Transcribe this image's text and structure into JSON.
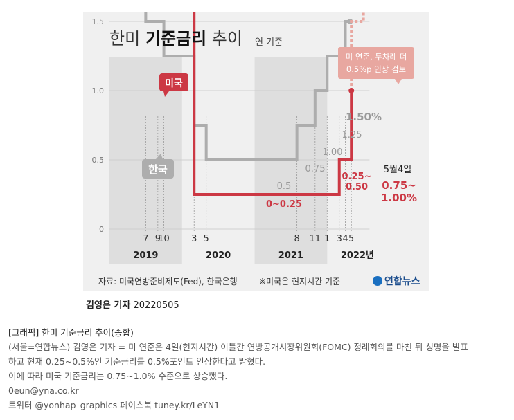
{
  "header": {
    "title_light": "한미",
    "title_bold": "기준금리",
    "title_end": "추이",
    "subtitle": "연 기준"
  },
  "labels": {
    "us": "미국",
    "korea": "한국",
    "us_dec_line1": "미 연준, 두차례 더",
    "us_dec_line2": "0.5%p 인상 검토",
    "date_may4": "5월4일",
    "us_now_1": "0.75~",
    "us_now_2": "1.00%",
    "kr_now": "1.50%",
    "v_0_25": "0~0.25",
    "v_05": "0.5",
    "v_075": "0.75",
    "v_100": "1.00",
    "v_125": "1.25",
    "us_025": "0.25~",
    "us_050": "0.50"
  },
  "footer": {
    "source": "자료: 미국연방준비제도(Fed), 한국은행",
    "note": "※미국은 현지시간 기준",
    "logo": "연합뉴스"
  },
  "credit": {
    "name": "김영은 기자",
    "date": "20220505"
  },
  "caption": {
    "title": "[그래픽] 한미 기준금리 추이(종합)",
    "line1": "(서울=연합뉴스) 김영은 기자 = 미 연준은 4일(현지시간) 이틀간 연방공개시장위원회(FOMC) 정례회의를 마친 뒤 성명을 발표",
    "line2": "하고 현재 0.25~0.5%인 기준금리를 0.5%포인트 인상한다고 밝혔다.",
    "line3": "이에 따라 미국 기준금리는 0.75~1.0% 수준으로 상승했다.",
    "line4": "0eun@yna.co.kr",
    "line5": "트위터 @yonhap_graphics 페이스북 tuney.kr/LeYN1"
  },
  "colors": {
    "us": "#cc3844",
    "korea": "#adadad",
    "us_future": "#e8a7a0"
  },
  "chart_data": {
    "type": "line",
    "step": true,
    "ylim": [
      0,
      2.5
    ],
    "yticks": [
      "0",
      "0.5",
      "1.0",
      "1.5",
      "2.0",
      "2.5"
    ],
    "year_labels": [
      "2019",
      "2020",
      "2021",
      "2022년"
    ],
    "month_labels": [
      {
        "m": "7",
        "year": 2019
      },
      {
        "m": "9",
        "year": 2019
      },
      {
        "m": "10",
        "year": 2019
      },
      {
        "m": "3",
        "year": 2020
      },
      {
        "m": "5",
        "year": 2020
      },
      {
        "m": "8",
        "year": 2021
      },
      {
        "m": "11",
        "year": 2021
      },
      {
        "m": "1",
        "year": 2022
      },
      {
        "m": "3",
        "year": 2022
      },
      {
        "m": "4",
        "year": 2022
      },
      {
        "m": "5",
        "year": 2022
      }
    ],
    "series": [
      {
        "name": "미국",
        "x": [
          "2019-01",
          "2019-07",
          "2019-09",
          "2019-10",
          "2020-03",
          "2022-03",
          "2022-05"
        ],
        "values": [
          2.5,
          2.25,
          2.0,
          1.75,
          0.25,
          0.5,
          1.0
        ]
      },
      {
        "name": "한국",
        "x": [
          "2019-01",
          "2019-07",
          "2019-10",
          "2020-03",
          "2020-05",
          "2021-08",
          "2021-11",
          "2022-01",
          "2022-04"
        ],
        "values": [
          1.75,
          1.5,
          1.25,
          0.75,
          0.5,
          0.75,
          1.0,
          1.25,
          1.5
        ]
      },
      {
        "name": "미국 (전망)",
        "x": [
          "2022-05",
          "2022-06",
          "2022-07"
        ],
        "values": [
          1.0,
          1.5,
          2.0
        ]
      }
    ]
  }
}
